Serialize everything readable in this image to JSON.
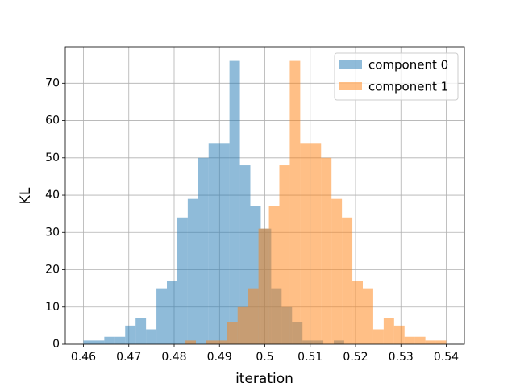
{
  "chart_data": {
    "type": "histogram",
    "xlabel": "iteration",
    "ylabel": "KL",
    "series": [
      {
        "name": "component 0",
        "color": "#1f77b4",
        "alpha": 0.5,
        "bins": [
          0.46,
          0.4623,
          0.4646,
          0.4669,
          0.4692,
          0.4715,
          0.4738,
          0.4761,
          0.4784,
          0.4807,
          0.483,
          0.4853,
          0.4876,
          0.4899,
          0.4922,
          0.4945,
          0.4968,
          0.4991,
          0.5014,
          0.5037,
          0.506,
          0.5083,
          0.5106,
          0.5129,
          0.5152,
          0.5175
        ],
        "values": [
          1,
          1,
          2,
          2,
          5,
          7,
          4,
          15,
          17,
          34,
          39,
          50,
          54,
          54,
          76,
          48,
          37,
          31,
          15,
          10,
          6,
          1,
          1,
          0,
          1
        ]
      },
      {
        "name": "component 1",
        "color": "#ff7f0e",
        "alpha": 0.5,
        "bins": [
          0.4825,
          0.4848,
          0.4871,
          0.4894,
          0.4917,
          0.494,
          0.4963,
          0.4986,
          0.5009,
          0.5032,
          0.5055,
          0.5078,
          0.5101,
          0.5124,
          0.5147,
          0.517,
          0.5193,
          0.5216,
          0.5239,
          0.5262,
          0.5285,
          0.5308,
          0.5331,
          0.5354,
          0.5377,
          0.54
        ],
        "values": [
          1,
          0,
          1,
          1,
          6,
          10,
          15,
          31,
          37,
          48,
          76,
          54,
          54,
          50,
          39,
          34,
          17,
          15,
          4,
          7,
          5,
          2,
          2,
          1,
          1
        ]
      }
    ],
    "xlim": [
      0.456,
      0.544
    ],
    "xticks": [
      0.46,
      0.47,
      0.48,
      0.49,
      0.5,
      0.51,
      0.52,
      0.53,
      0.54
    ],
    "ylim": [
      0,
      79.8
    ],
    "yticks": [
      0,
      10,
      20,
      30,
      40,
      50,
      60,
      70
    ],
    "grid": true,
    "legend": "upper right"
  }
}
